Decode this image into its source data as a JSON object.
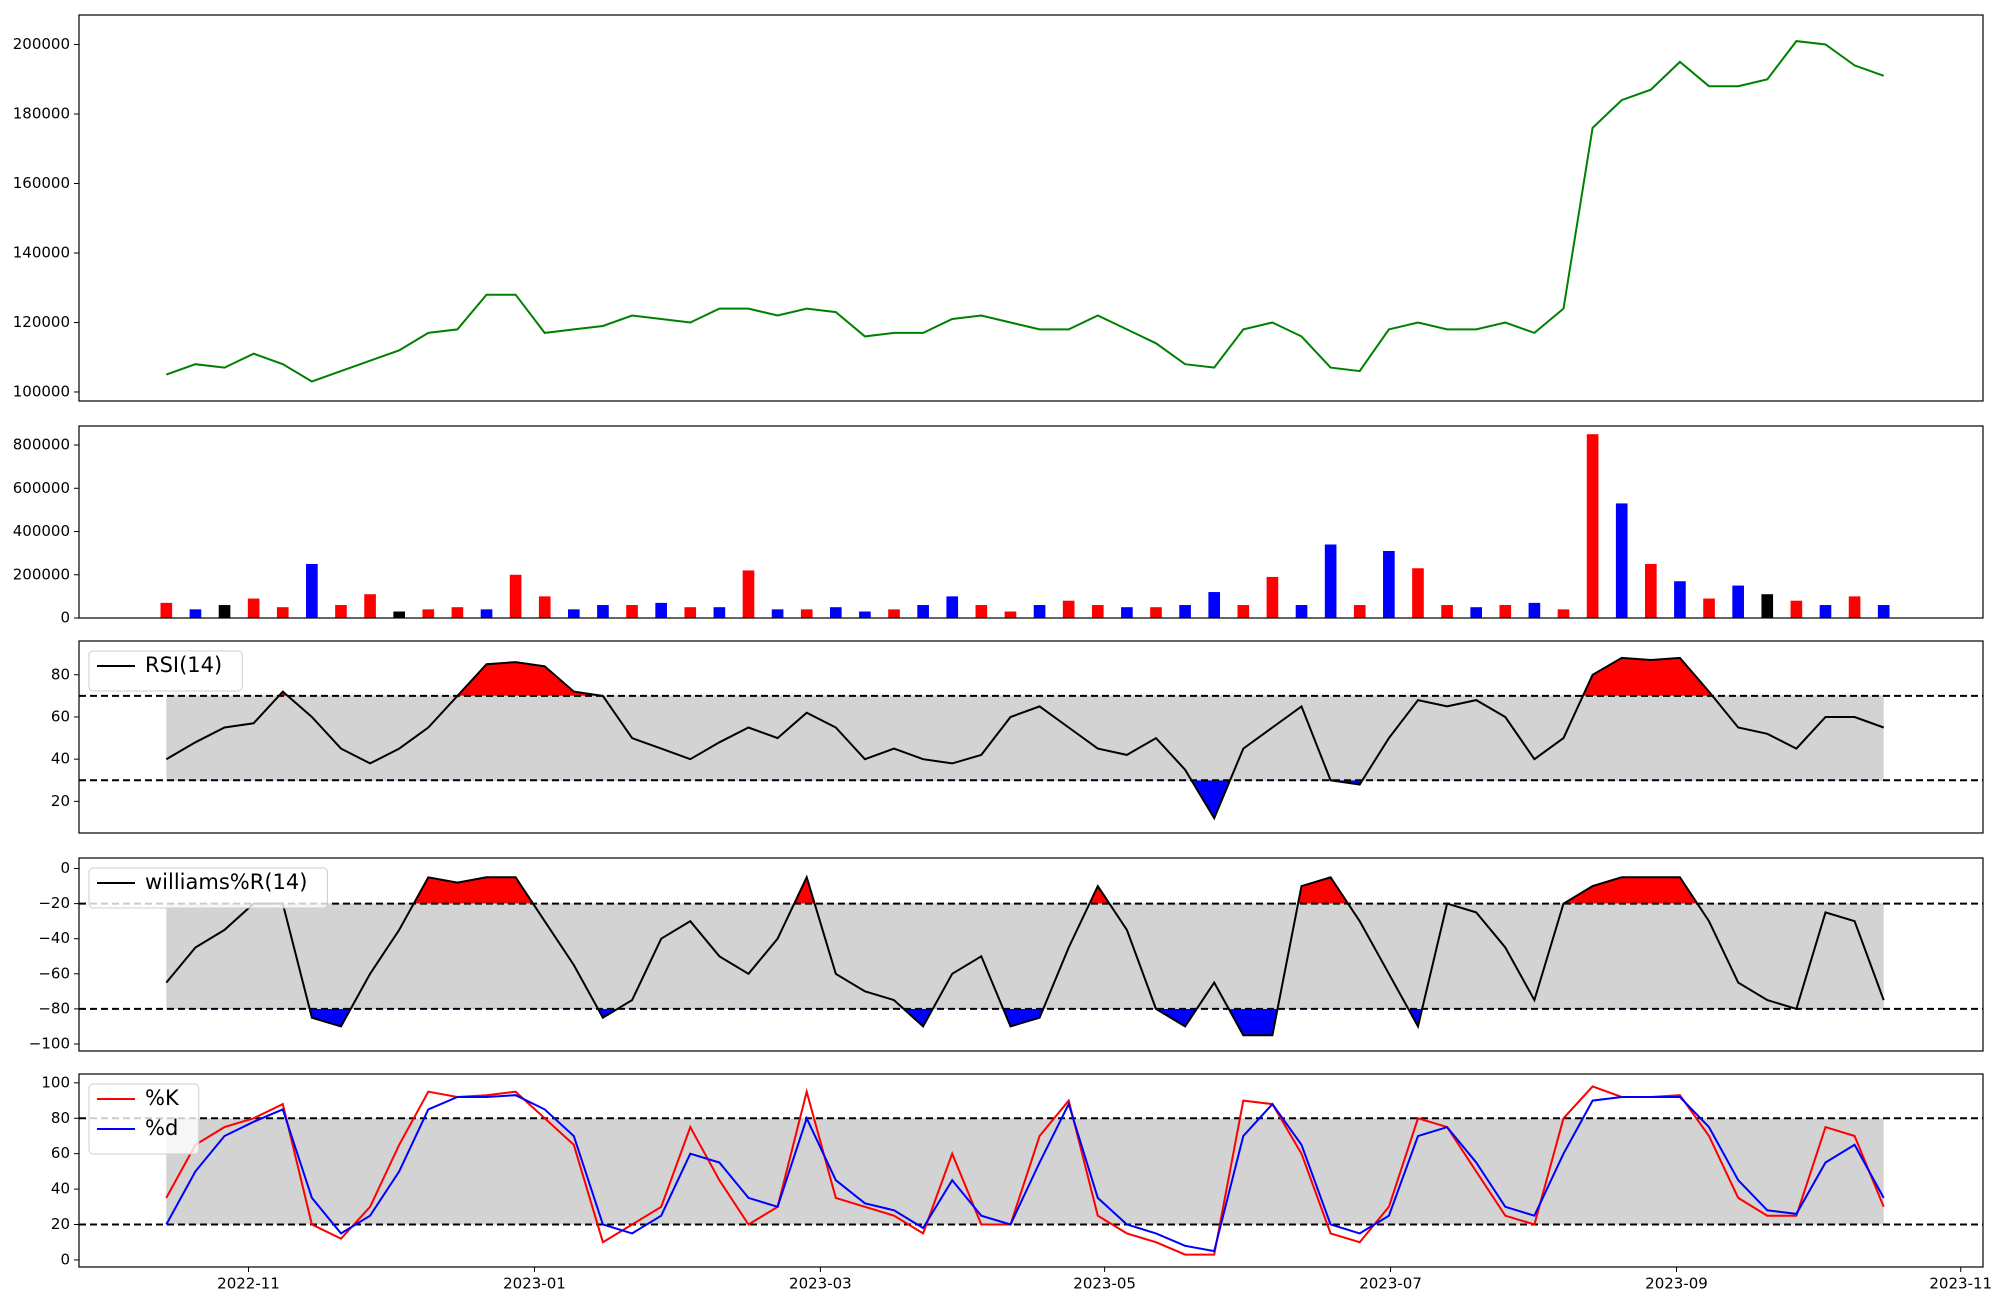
{
  "chart_data": [
    {
      "type": "line",
      "x": [
        2022.785,
        2022.802,
        2022.819,
        2022.836,
        2022.853,
        2022.87,
        2022.887,
        2022.904,
        2022.921,
        2022.938,
        2022.955,
        2022.972,
        2022.989,
        2023.006,
        2023.023,
        2023.04,
        2023.057,
        2023.074,
        2023.091,
        2023.108,
        2023.125,
        2023.142,
        2023.159,
        2023.176,
        2023.193,
        2023.21,
        2023.227,
        2023.244,
        2023.261,
        2023.278,
        2023.295,
        2023.312,
        2023.329,
        2023.346,
        2023.363,
        2023.38,
        2023.397,
        2023.414,
        2023.431,
        2023.448,
        2023.465,
        2023.482,
        2023.499,
        2023.516,
        2023.533,
        2023.55,
        2023.567,
        2023.584,
        2023.601,
        2023.618,
        2023.635,
        2023.652,
        2023.669,
        2023.686,
        2023.703,
        2023.72,
        2023.737,
        2023.754,
        2023.771,
        2023.788
      ],
      "xlim": [
        2022.734,
        2023.846
      ],
      "ylim": [
        97400,
        208500
      ],
      "yticks": [
        100000,
        120000,
        140000,
        160000,
        180000,
        200000
      ],
      "series": [
        {
          "color": "green",
          "values": [
            105000,
            108000,
            107000,
            111000,
            108000,
            103000,
            106000,
            109000,
            112000,
            117000,
            118000,
            128000,
            128000,
            117000,
            118000,
            119000,
            122000,
            121000,
            120000,
            124000,
            124000,
            122000,
            124000,
            123000,
            116000,
            117000,
            117000,
            121000,
            122000,
            120000,
            118000,
            118000,
            122000,
            118000,
            114000,
            108000,
            107000,
            118000,
            120000,
            116000,
            107000,
            106000,
            118000,
            120000,
            118000,
            118000,
            120000,
            117000,
            124000,
            176000,
            184000,
            187000,
            195000,
            188000,
            188000,
            190000,
            201000,
            200000,
            194000,
            191000
          ]
        }
      ]
    },
    {
      "type": "bar",
      "ylim": [
        0,
        888000
      ],
      "yticks": [
        0,
        200000,
        400000,
        600000,
        800000
      ],
      "values": [
        70000,
        40000,
        60000,
        90000,
        50000,
        250000,
        60000,
        110000,
        30000,
        40000,
        50000,
        40000,
        200000,
        100000,
        40000,
        60000,
        60000,
        70000,
        50000,
        50000,
        220000,
        40000,
        40000,
        50000,
        30000,
        40000,
        60000,
        100000,
        60000,
        30000,
        60000,
        80000,
        60000,
        50000,
        50000,
        60000,
        120000,
        60000,
        190000,
        60000,
        340000,
        60000,
        310000,
        230000,
        60000,
        50000,
        60000,
        70000,
        40000,
        850000,
        530000,
        250000,
        170000,
        90000,
        150000,
        110000,
        80000,
        60000,
        100000,
        60000
      ],
      "colors": [
        "red",
        "blue",
        "black",
        "red",
        "red",
        "blue",
        "red",
        "red",
        "black",
        "red",
        "red",
        "blue",
        "red",
        "red",
        "blue",
        "blue",
        "red",
        "blue",
        "red",
        "blue",
        "red",
        "blue",
        "red",
        "blue",
        "blue",
        "red",
        "blue",
        "blue",
        "red",
        "red",
        "blue",
        "red",
        "red",
        "blue",
        "red",
        "blue",
        "blue",
        "red",
        "red",
        "blue",
        "blue",
        "red",
        "blue",
        "red",
        "red",
        "blue",
        "red",
        "blue",
        "red",
        "red",
        "blue",
        "red",
        "blue",
        "red",
        "blue",
        "black",
        "red",
        "blue",
        "red",
        "blue"
      ]
    },
    {
      "type": "oscillator",
      "ylim": [
        5,
        96
      ],
      "yticks": [
        20,
        40,
        60,
        80
      ],
      "hlines": [
        70,
        30
      ],
      "band_color": "#d3d3d3",
      "over_color": "red",
      "under_color": "blue",
      "fill_extremes": true,
      "series": [
        {
          "name": "RSI(14)",
          "color": "black",
          "values": [
            40,
            48,
            55,
            57,
            72,
            60,
            45,
            38,
            45,
            55,
            70,
            85,
            86,
            84,
            72,
            70,
            50,
            45,
            40,
            48,
            55,
            50,
            62,
            55,
            40,
            45,
            40,
            38,
            42,
            60,
            65,
            55,
            45,
            42,
            50,
            35,
            12,
            45,
            55,
            65,
            30,
            28,
            50,
            68,
            65,
            68,
            60,
            40,
            50,
            80,
            88,
            87,
            88,
            72,
            55,
            52,
            45,
            60,
            60,
            55
          ]
        }
      ]
    },
    {
      "type": "oscillator",
      "ylim": [
        -104,
        6
      ],
      "yticks": [
        {
          "value": -100,
          "label": "−100"
        },
        {
          "value": -80,
          "label": "−80"
        },
        {
          "value": -60,
          "label": "−60"
        },
        {
          "value": -40,
          "label": "−40"
        },
        {
          "value": -20,
          "label": "−20"
        },
        0
      ],
      "hlines": [
        -20,
        -80
      ],
      "band_color": "#d3d3d3",
      "over_color": "red",
      "under_color": "blue",
      "fill_extremes": true,
      "series": [
        {
          "name": "williams%R(14)",
          "color": "black",
          "values": [
            -65,
            -45,
            -35,
            -20,
            -20,
            -85,
            -90,
            -60,
            -35,
            -5,
            -8,
            -5,
            -5,
            -30,
            -55,
            -85,
            -75,
            -40,
            -30,
            -50,
            -60,
            -40,
            -5,
            -60,
            -70,
            -75,
            -90,
            -60,
            -50,
            -90,
            -85,
            -45,
            -10,
            -35,
            -80,
            -90,
            -65,
            -95,
            -95,
            -10,
            -5,
            -30,
            -60,
            -90,
            -20,
            -25,
            -45,
            -75,
            -20,
            -10,
            -5,
            -5,
            -5,
            -30,
            -65,
            -75,
            -80,
            -25,
            -30,
            -75
          ]
        }
      ]
    },
    {
      "type": "oscillator",
      "ylim": [
        -4,
        105
      ],
      "yticks": [
        0,
        20,
        40,
        60,
        80,
        100
      ],
      "hlines": [
        80,
        20
      ],
      "band_color": "#d3d3d3",
      "fill_extremes": false,
      "xticks": [
        {
          "value": 2022.833,
          "label": "2022-11"
        },
        {
          "value": 2023.0,
          "label": "2023-01"
        },
        {
          "value": 2023.167,
          "label": "2023-03"
        },
        {
          "value": 2023.333,
          "label": "2023-05"
        },
        {
          "value": 2023.5,
          "label": "2023-07"
        },
        {
          "value": 2023.667,
          "label": "2023-09"
        },
        {
          "value": 2023.833,
          "label": "2023-11"
        }
      ],
      "series": [
        {
          "name": "%K",
          "color": "red",
          "values": [
            35,
            65,
            75,
            80,
            88,
            20,
            12,
            30,
            65,
            95,
            92,
            93,
            95,
            80,
            65,
            10,
            20,
            30,
            75,
            45,
            20,
            30,
            95,
            35,
            30,
            25,
            15,
            60,
            20,
            20,
            70,
            90,
            25,
            15,
            10,
            3,
            3,
            90,
            88,
            60,
            15,
            10,
            30,
            80,
            75,
            50,
            25,
            20,
            80,
            98,
            92,
            92,
            93,
            70,
            35,
            25,
            25,
            75,
            70,
            30
          ]
        },
        {
          "name": "%d",
          "color": "blue",
          "values": [
            20,
            50,
            70,
            78,
            85,
            35,
            15,
            25,
            50,
            85,
            92,
            92,
            93,
            85,
            70,
            20,
            15,
            25,
            60,
            55,
            35,
            30,
            80,
            45,
            32,
            28,
            18,
            45,
            25,
            20,
            55,
            88,
            35,
            20,
            15,
            8,
            5,
            70,
            88,
            65,
            20,
            15,
            25,
            70,
            75,
            55,
            30,
            25,
            60,
            90,
            92,
            92,
            92,
            75,
            45,
            28,
            26,
            55,
            65,
            35
          ]
        }
      ]
    }
  ]
}
